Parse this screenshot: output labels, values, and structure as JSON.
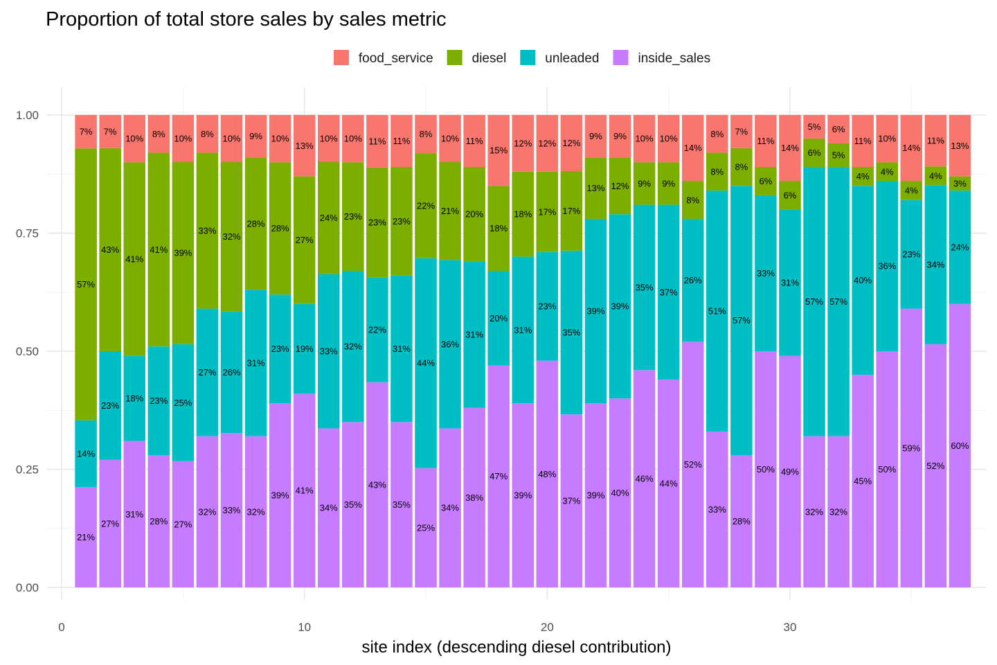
{
  "chart_data": {
    "type": "bar",
    "stacked": true,
    "title": "Proportion of total store sales by sales metric",
    "xlabel": "site index (descending diesel contribution)",
    "ylabel": "",
    "xlim": [
      0,
      37
    ],
    "ylim": [
      0,
      1
    ],
    "xticks": [
      0,
      10,
      20,
      30
    ],
    "xtick_labels": [
      "0",
      "10",
      "20",
      "30"
    ],
    "yticks": [
      0,
      0.25,
      0.5,
      0.75,
      1.0
    ],
    "ytick_labels": [
      "0.00",
      "0.25",
      "0.50",
      "0.75",
      "1.00"
    ],
    "grid": true,
    "legend_position": "top",
    "x": [
      1,
      2,
      3,
      4,
      5,
      6,
      7,
      8,
      9,
      10,
      11,
      12,
      13,
      14,
      15,
      16,
      17,
      18,
      19,
      20,
      21,
      22,
      23,
      24,
      25,
      26,
      27,
      28,
      29,
      30,
      31,
      32,
      33,
      34,
      35,
      36,
      37
    ],
    "series": [
      {
        "name": "inside_sales",
        "color": "#C77CFF",
        "values": [
          0.21,
          0.27,
          0.31,
          0.28,
          0.27,
          0.32,
          0.33,
          0.32,
          0.39,
          0.41,
          0.34,
          0.35,
          0.43,
          0.35,
          0.25,
          0.34,
          0.38,
          0.47,
          0.39,
          0.48,
          0.37,
          0.39,
          0.4,
          0.46,
          0.44,
          0.52,
          0.33,
          0.28,
          0.5,
          0.49,
          0.32,
          0.32,
          0.45,
          0.5,
          0.59,
          0.52,
          0.6
        ],
        "labels": [
          "21%",
          "27%",
          "31%",
          "28%",
          "27%",
          "32%",
          "33%",
          "32%",
          "39%",
          "41%",
          "34%",
          "35%",
          "43%",
          "35%",
          "25%",
          "34%",
          "38%",
          "47%",
          "39%",
          "48%",
          "37%",
          "39%",
          "40%",
          "46%",
          "44%",
          "52%",
          "33%",
          "28%",
          "50%",
          "49%",
          "32%",
          "32%",
          "45%",
          "50%",
          "59%",
          "52%",
          "60%"
        ]
      },
      {
        "name": "unleaded",
        "color": "#00BFC4",
        "values": [
          0.14,
          0.23,
          0.18,
          0.23,
          0.25,
          0.27,
          0.26,
          0.31,
          0.23,
          0.19,
          0.33,
          0.32,
          0.22,
          0.31,
          0.44,
          0.36,
          0.31,
          0.2,
          0.31,
          0.23,
          0.35,
          0.39,
          0.39,
          0.35,
          0.37,
          0.26,
          0.51,
          0.57,
          0.33,
          0.31,
          0.57,
          0.57,
          0.4,
          0.36,
          0.23,
          0.34,
          0.24
        ],
        "labels": [
          "14%",
          "23%",
          "18%",
          "23%",
          "25%",
          "27%",
          "26%",
          "31%",
          "23%",
          "19%",
          "33%",
          "32%",
          "22%",
          "31%",
          "44%",
          "36%",
          "31%",
          "20%",
          "31%",
          "23%",
          "35%",
          "39%",
          "39%",
          "35%",
          "37%",
          "26%",
          "51%",
          "57%",
          "33%",
          "31%",
          "57%",
          "57%",
          "40%",
          "36%",
          "23%",
          "34%",
          "24%"
        ]
      },
      {
        "name": "diesel",
        "color": "#7CAE00",
        "values": [
          0.57,
          0.43,
          0.41,
          0.41,
          0.39,
          0.33,
          0.32,
          0.28,
          0.28,
          0.27,
          0.24,
          0.23,
          0.23,
          0.23,
          0.22,
          0.21,
          0.2,
          0.18,
          0.18,
          0.17,
          0.17,
          0.13,
          0.12,
          0.09,
          0.09,
          0.08,
          0.08,
          0.08,
          0.06,
          0.06,
          0.06,
          0.05,
          0.04,
          0.04,
          0.04,
          0.04,
          0.03
        ],
        "labels": [
          "57%",
          "43%",
          "41%",
          "41%",
          "39%",
          "33%",
          "32%",
          "28%",
          "28%",
          "27%",
          "24%",
          "23%",
          "23%",
          "23%",
          "22%",
          "21%",
          "20%",
          "18%",
          "18%",
          "17%",
          "17%",
          "13%",
          "12%",
          "9%",
          "9%",
          "8%",
          "8%",
          "8%",
          "6%",
          "6%",
          "6%",
          "5%",
          "4%",
          "4%",
          "4%",
          "4%",
          "3%"
        ]
      },
      {
        "name": "food_service",
        "color": "#F8766D",
        "values": [
          0.07,
          0.07,
          0.1,
          0.08,
          0.1,
          0.08,
          0.1,
          0.09,
          0.1,
          0.13,
          0.1,
          0.1,
          0.11,
          0.11,
          0.08,
          0.1,
          0.11,
          0.15,
          0.12,
          0.12,
          0.12,
          0.09,
          0.09,
          0.1,
          0.1,
          0.14,
          0.08,
          0.07,
          0.11,
          0.14,
          0.05,
          0.06,
          0.11,
          0.1,
          0.14,
          0.11,
          0.13
        ],
        "labels": [
          "7%",
          "7%",
          "10%",
          "8%",
          "10%",
          "8%",
          "10%",
          "9%",
          "10%",
          "13%",
          "10%",
          "10%",
          "11%",
          "11%",
          "8%",
          "10%",
          "11%",
          "15%",
          "12%",
          "12%",
          "12%",
          "9%",
          "9%",
          "10%",
          "10%",
          "14%",
          "8%",
          "7%",
          "11%",
          "14%",
          "5%",
          "6%",
          "11%",
          "10%",
          "14%",
          "11%",
          "13%"
        ]
      }
    ],
    "legend_order": [
      "food_service",
      "diesel",
      "unleaded",
      "inside_sales"
    ]
  }
}
